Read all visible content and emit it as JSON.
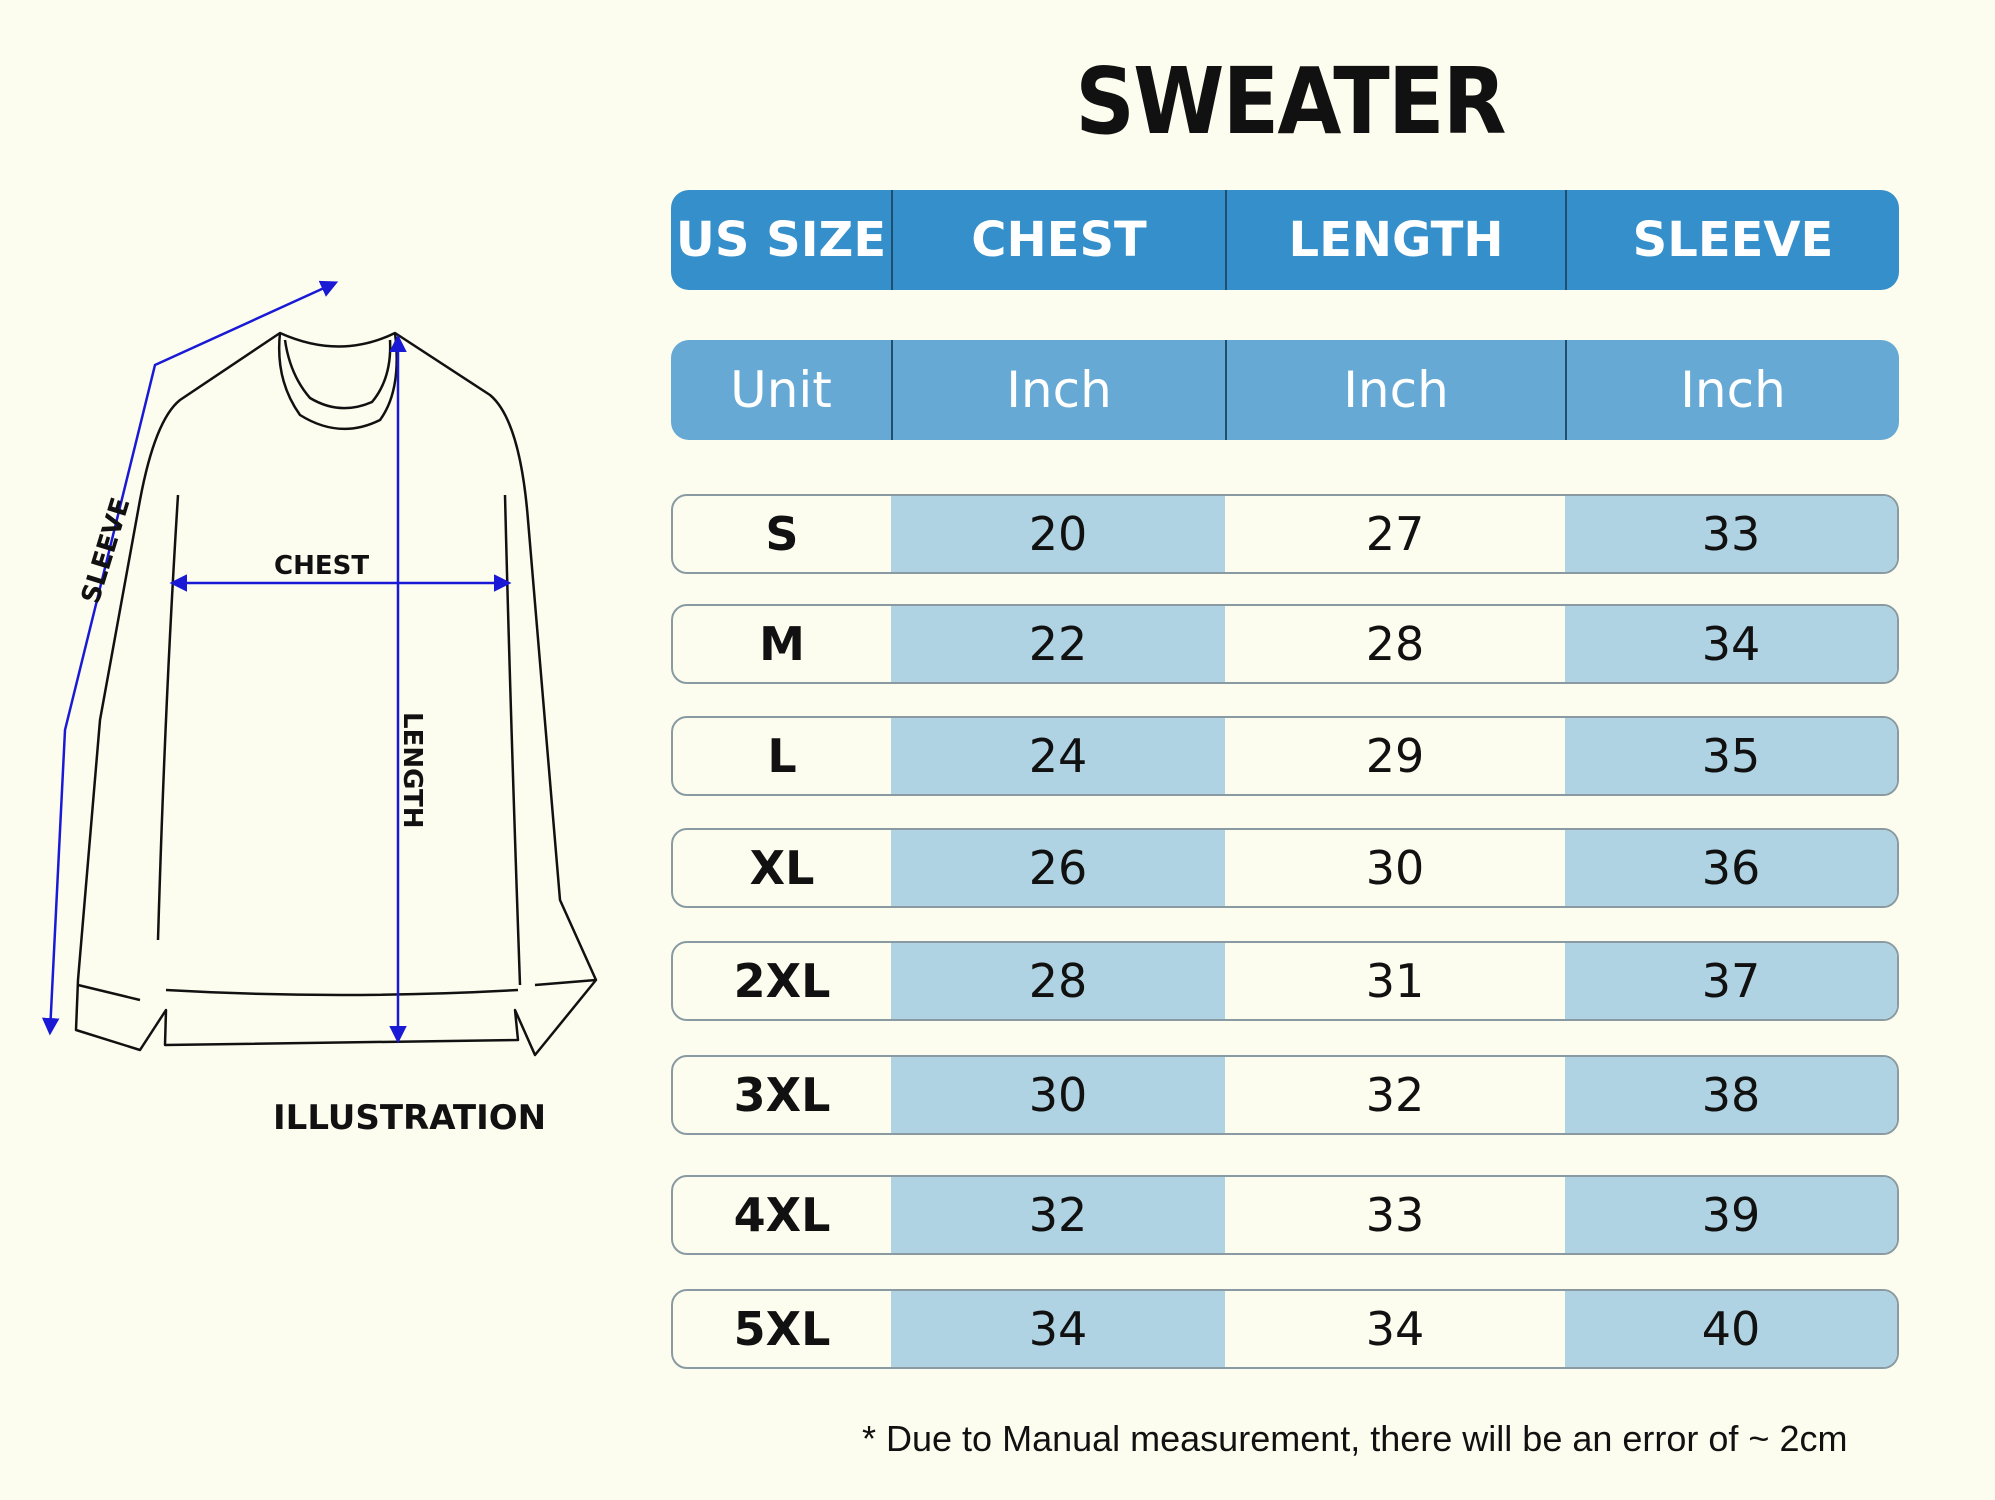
{
  "title": "SWEATER",
  "header": {
    "size": "US SIZE",
    "chest": "CHEST",
    "length": "LENGTH",
    "sleeve": "SLEEVE"
  },
  "units": {
    "label": "Unit",
    "chest": "Inch",
    "length": "Inch",
    "sleeve": "Inch"
  },
  "rows": [
    {
      "size": "S",
      "chest": "20",
      "length": "27",
      "sleeve": "33"
    },
    {
      "size": "M",
      "chest": "22",
      "length": "28",
      "sleeve": "34"
    },
    {
      "size": "L",
      "chest": "24",
      "length": "29",
      "sleeve": "35"
    },
    {
      "size": "XL",
      "chest": "26",
      "length": "30",
      "sleeve": "36"
    },
    {
      "size": "2XL",
      "chest": "28",
      "length": "31",
      "sleeve": "37"
    },
    {
      "size": "3XL",
      "chest": "30",
      "length": "32",
      "sleeve": "38"
    },
    {
      "size": "4XL",
      "chest": "32",
      "length": "33",
      "sleeve": "39"
    },
    {
      "size": "5XL",
      "chest": "34",
      "length": "34",
      "sleeve": "40"
    }
  ],
  "illustration": {
    "sleeve_label": "SLEEVE",
    "chest_label": "CHEST",
    "length_label": "LENGTH",
    "caption": "ILLUSTRATION"
  },
  "note": "* Due to Manual measurement, there will be an error of ~ 2cm",
  "colors": {
    "background": "#fcfdee",
    "header": "#348fcb",
    "unit_header": "#65a9d4",
    "shaded_cell": "#afd3e2",
    "measure_arrow": "#1a1ad6"
  }
}
